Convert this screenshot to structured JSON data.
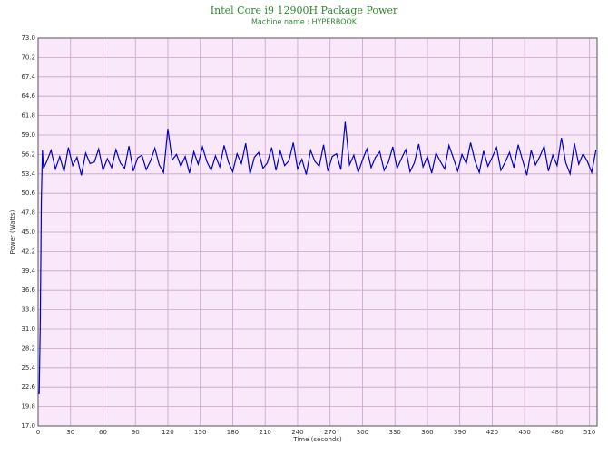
{
  "chart_data": {
    "type": "line",
    "title": "Intel Core i9 12900H Package Power",
    "subtitle": "Machine name : HYPERBOOK",
    "x_label": "Time (seconds)",
    "y_label": "Power (Watts)",
    "color": "#0000cc",
    "plot_background": "#f9e8f9",
    "grid": true,
    "xlim": [
      0,
      517
    ],
    "ylim": [
      17,
      73
    ],
    "xticks": [
      0,
      30,
      60,
      90,
      120,
      150,
      180,
      210,
      240,
      270,
      300,
      330,
      360,
      390,
      420,
      450,
      480,
      510
    ],
    "yticks": [
      {
        "value": 17,
        "label": "17.0"
      },
      19.8,
      22.6,
      25.4,
      28.2,
      {
        "value": 31,
        "label": "31.0"
      },
      33.8,
      36.6,
      39.4,
      42.2,
      {
        "value": 45,
        "label": "45.0"
      },
      47.8,
      50.6,
      53.4,
      56.2,
      {
        "value": 59,
        "label": "59.0"
      },
      61.8,
      64.6,
      67.4,
      70.2,
      {
        "value": 73,
        "label": "73.0"
      }
    ],
    "x": [
      0,
      1,
      2,
      3,
      4,
      5,
      8,
      12,
      16,
      20,
      24,
      28,
      32,
      36,
      40,
      44,
      48,
      52,
      56,
      60,
      64,
      68,
      72,
      76,
      80,
      84,
      88,
      92,
      96,
      100,
      104,
      108,
      112,
      116,
      120,
      124,
      128,
      132,
      136,
      140,
      144,
      148,
      152,
      156,
      160,
      164,
      168,
      172,
      176,
      180,
      184,
      188,
      192,
      196,
      200,
      204,
      208,
      212,
      216,
      220,
      224,
      228,
      232,
      236,
      240,
      244,
      248,
      252,
      256,
      260,
      264,
      268,
      272,
      276,
      280,
      284,
      288,
      292,
      296,
      300,
      304,
      308,
      312,
      316,
      320,
      324,
      328,
      332,
      336,
      340,
      344,
      348,
      352,
      356,
      360,
      364,
      368,
      372,
      376,
      380,
      384,
      388,
      392,
      396,
      400,
      404,
      408,
      412,
      416,
      420,
      424,
      428,
      432,
      436,
      440,
      444,
      448,
      452,
      456,
      460,
      464,
      468,
      472,
      476,
      480,
      484,
      488,
      492,
      496,
      500,
      504,
      508,
      512,
      516
    ],
    "values": [
      22.1,
      21.6,
      32.0,
      49.5,
      56.8,
      54.2,
      55.2,
      56.8,
      54.1,
      55.9,
      53.7,
      57.2,
      54.6,
      55.8,
      53.2,
      56.4,
      54.9,
      55.1,
      57.0,
      53.9,
      55.6,
      54.3,
      56.9,
      55.0,
      54.2,
      57.4,
      53.8,
      55.7,
      56.1,
      54.0,
      55.3,
      57.1,
      54.7,
      53.6,
      59.9,
      55.4,
      56.2,
      54.5,
      55.9,
      53.5,
      56.6,
      54.8,
      57.3,
      55.2,
      53.9,
      56.0,
      54.4,
      57.5,
      55.1,
      53.7,
      56.3,
      54.9,
      57.8,
      53.4,
      55.8,
      56.5,
      54.2,
      55.0,
      57.2,
      53.9,
      56.7,
      54.6,
      55.3,
      57.9,
      54.1,
      55.5,
      53.3,
      56.8,
      55.2,
      54.5,
      57.6,
      53.8,
      55.9,
      56.3,
      54.0,
      60.9,
      54.7,
      56.1,
      53.6,
      55.4,
      57.0,
      54.3,
      55.8,
      56.6,
      53.9,
      55.1,
      57.3,
      54.2,
      55.6,
      56.9,
      53.7,
      55.0,
      57.7,
      54.4,
      55.9,
      53.5,
      56.4,
      55.2,
      54.1,
      57.5,
      55.7,
      53.8,
      56.2,
      54.9,
      57.9,
      55.3,
      53.6,
      56.7,
      54.5,
      55.8,
      57.2,
      53.9,
      55.1,
      56.5,
      54.3,
      57.6,
      55.4,
      53.2,
      56.8,
      54.7,
      55.9,
      57.4,
      53.8,
      56.1,
      54.6,
      58.6,
      55.0,
      53.4,
      57.8,
      54.8,
      56.3,
      55.2,
      53.6,
      56.9
    ]
  }
}
